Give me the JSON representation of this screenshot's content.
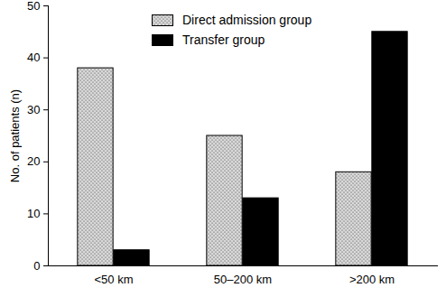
{
  "chart_data": {
    "type": "bar",
    "categories": [
      "<50 km",
      "50–200 km",
      ">200 km"
    ],
    "series": [
      {
        "name": "Direct admission group",
        "color": "#d9d9d9",
        "marker": "dotted",
        "values": [
          38,
          25,
          18
        ]
      },
      {
        "name": "Transfer group",
        "color": "#000000",
        "values": [
          3,
          13,
          45
        ]
      }
    ],
    "ylabel": "No. of patients (n)",
    "ylim": [
      0,
      50
    ],
    "yticks": [
      0,
      10,
      20,
      30,
      40,
      50
    ],
    "grid": false,
    "legend": "top"
  }
}
